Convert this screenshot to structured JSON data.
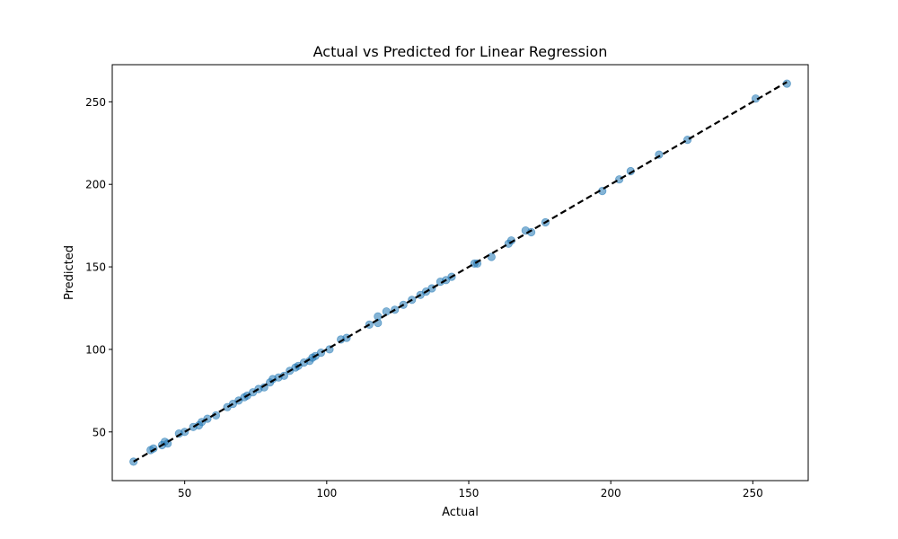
{
  "chart_data": {
    "type": "scatter",
    "title": "Actual vs Predicted for Linear Regression",
    "xlabel": "Actual",
    "ylabel": "Predicted",
    "xlim": [
      24.5,
      269.5
    ],
    "ylim": [
      20.5,
      272.5
    ],
    "xticks": [
      50,
      100,
      150,
      200,
      250
    ],
    "yticks": [
      50,
      100,
      150,
      200,
      250
    ],
    "grid": false,
    "colors": {
      "points": "#1f77b4",
      "reference_line": "#000000",
      "frame": "#000000"
    },
    "points": [
      [
        32,
        32
      ],
      [
        38,
        39
      ],
      [
        39,
        40
      ],
      [
        42,
        42
      ],
      [
        43,
        44
      ],
      [
        44,
        43
      ],
      [
        48,
        49
      ],
      [
        50,
        50
      ],
      [
        53,
        53
      ],
      [
        55,
        54
      ],
      [
        56,
        56
      ],
      [
        58,
        58
      ],
      [
        61,
        60
      ],
      [
        65,
        65
      ],
      [
        67,
        67
      ],
      [
        69,
        69
      ],
      [
        71,
        71
      ],
      [
        72,
        72
      ],
      [
        74,
        74
      ],
      [
        76,
        76
      ],
      [
        78,
        77
      ],
      [
        80,
        80
      ],
      [
        81,
        82
      ],
      [
        83,
        83
      ],
      [
        85,
        84
      ],
      [
        87,
        87
      ],
      [
        89,
        89
      ],
      [
        90,
        90
      ],
      [
        92,
        92
      ],
      [
        94,
        93
      ],
      [
        95,
        95
      ],
      [
        96,
        96
      ],
      [
        98,
        98
      ],
      [
        101,
        100
      ],
      [
        105,
        106
      ],
      [
        107,
        107
      ],
      [
        115,
        115
      ],
      [
        118,
        120
      ],
      [
        118,
        116
      ],
      [
        121,
        123
      ],
      [
        124,
        124
      ],
      [
        127,
        127
      ],
      [
        130,
        130
      ],
      [
        133,
        133
      ],
      [
        135,
        135
      ],
      [
        137,
        137
      ],
      [
        140,
        141
      ],
      [
        142,
        142
      ],
      [
        144,
        144
      ],
      [
        152,
        152
      ],
      [
        153,
        152
      ],
      [
        158,
        156
      ],
      [
        164,
        164
      ],
      [
        165,
        166
      ],
      [
        170,
        172
      ],
      [
        172,
        171
      ],
      [
        177,
        177
      ],
      [
        197,
        196
      ],
      [
        203,
        203
      ],
      [
        207,
        208
      ],
      [
        217,
        218
      ],
      [
        227,
        227
      ],
      [
        251,
        252
      ],
      [
        262,
        261
      ]
    ],
    "reference_line": {
      "x": [
        32,
        262
      ],
      "y": [
        32,
        262
      ],
      "style": "dashed"
    }
  }
}
